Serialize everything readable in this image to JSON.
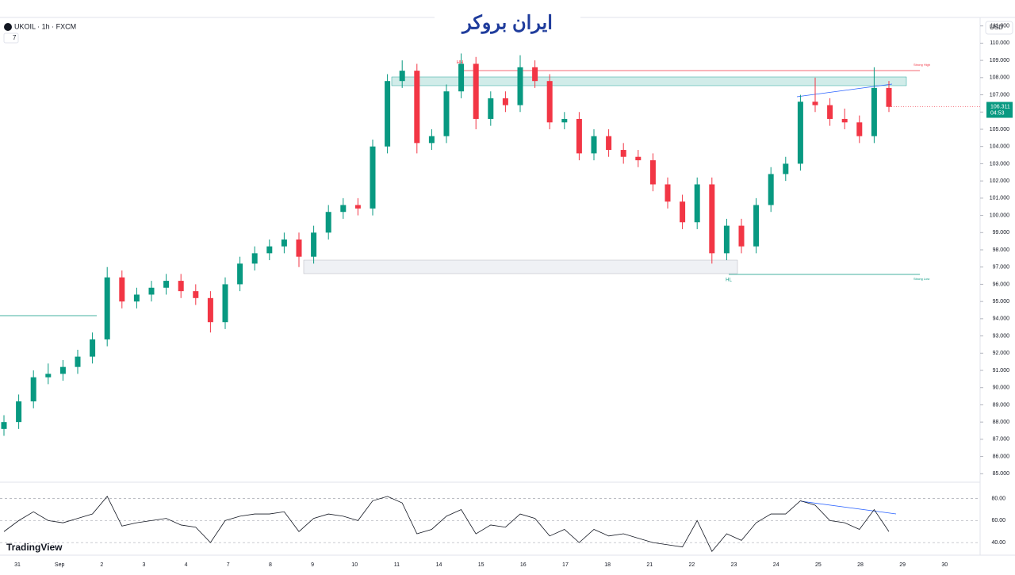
{
  "chart_data": {
    "type": "candlestick",
    "symbol": "UKOIL · 1h · FXCM",
    "indicator_count": "7",
    "currency": "USD",
    "brand": "ایران بروکر",
    "watermark": "TradingView",
    "x_labels": [
      "31",
      "Sep",
      "2",
      "3",
      "4",
      "7",
      "8",
      "9",
      "10",
      "11",
      "14",
      "15",
      "16",
      "17",
      "18",
      "21",
      "22",
      "23",
      "24",
      "25",
      "28",
      "29",
      "30"
    ],
    "open": [
      87.6,
      88.0,
      89.2,
      90.6,
      90.8,
      91.2,
      91.8,
      92.8,
      96.4,
      95.0,
      95.4,
      95.8,
      96.2,
      95.6,
      95.2,
      93.8,
      96.0,
      97.2,
      97.8,
      98.2,
      98.6,
      97.6,
      99.0,
      100.2,
      100.6,
      100.4,
      104.0,
      107.8,
      108.4,
      104.2,
      104.6,
      107.2,
      108.8,
      105.6,
      106.8,
      106.4,
      108.6,
      107.8,
      105.4,
      105.6,
      103.6,
      104.6,
      103.8,
      103.4,
      103.2,
      101.8,
      100.8,
      99.6,
      101.8,
      97.8,
      99.4,
      98.2,
      100.6,
      102.4,
      103.0,
      106.6,
      106.4,
      105.6,
      105.4,
      104.6,
      107.4
    ],
    "high": [
      88.4,
      89.6,
      91.0,
      91.4,
      91.6,
      92.2,
      93.2,
      97.0,
      96.8,
      95.8,
      96.2,
      96.6,
      96.6,
      96.0,
      95.6,
      96.4,
      97.6,
      98.2,
      98.6,
      99.0,
      99.0,
      99.4,
      100.6,
      101.0,
      101.0,
      104.4,
      108.2,
      109.0,
      108.8,
      105.0,
      107.6,
      109.4,
      109.2,
      107.2,
      107.2,
      109.3,
      109.0,
      108.2,
      106.0,
      106.0,
      105.0,
      105.0,
      104.2,
      103.8,
      103.6,
      102.2,
      101.2,
      102.2,
      102.2,
      99.8,
      99.8,
      101.0,
      102.8,
      103.4,
      107.0,
      108.0,
      106.8,
      106.2,
      105.8,
      108.6,
      107.8
    ],
    "low": [
      87.2,
      87.6,
      88.8,
      90.2,
      90.4,
      90.8,
      91.4,
      92.4,
      94.6,
      94.6,
      95.0,
      95.4,
      95.2,
      94.8,
      93.2,
      93.4,
      95.6,
      96.8,
      97.4,
      97.8,
      97.0,
      97.2,
      98.6,
      99.8,
      100.0,
      100.0,
      103.6,
      107.4,
      103.6,
      103.8,
      104.2,
      106.8,
      105.0,
      105.2,
      106.0,
      106.0,
      107.4,
      105.0,
      105.0,
      103.2,
      103.2,
      103.4,
      103.0,
      102.8,
      101.4,
      100.4,
      99.2,
      99.2,
      97.2,
      97.4,
      97.8,
      97.8,
      100.2,
      102.0,
      102.6,
      106.0,
      105.2,
      105.0,
      104.2,
      104.2,
      106.0
    ],
    "close": [
      88.0,
      89.2,
      90.6,
      90.8,
      91.2,
      91.8,
      92.8,
      96.4,
      95.0,
      95.4,
      95.8,
      96.2,
      95.6,
      95.2,
      93.8,
      96.0,
      97.2,
      97.8,
      98.2,
      98.6,
      97.6,
      99.0,
      100.2,
      100.6,
      100.4,
      104.0,
      107.8,
      108.4,
      104.2,
      104.6,
      107.2,
      108.8,
      105.6,
      106.8,
      106.4,
      108.6,
      107.8,
      105.4,
      105.6,
      103.6,
      104.6,
      103.8,
      103.4,
      103.2,
      101.8,
      100.8,
      99.6,
      101.8,
      97.8,
      99.4,
      98.2,
      100.6,
      102.4,
      103.0,
      106.6,
      106.4,
      105.6,
      105.4,
      104.6,
      107.4,
      106.3
    ],
    "up_color": "#089981",
    "down_color": "#f23645",
    "last_price": {
      "value": 106.311,
      "label": "106.311"
    },
    "countdown": "04:53",
    "ylim": [
      84.6,
      111.4
    ],
    "yticks": [
      {
        "value": 85,
        "label": "85.000"
      },
      {
        "value": 86,
        "label": "86.000"
      },
      {
        "value": 87,
        "label": "87.000"
      },
      {
        "value": 88,
        "label": "88.000"
      },
      {
        "value": 89,
        "label": "89.000"
      },
      {
        "value": 90,
        "label": "90.000"
      },
      {
        "value": 91,
        "label": "91.000"
      },
      {
        "value": 92,
        "label": "92.000"
      },
      {
        "value": 93,
        "label": "93.000"
      },
      {
        "value": 94,
        "label": "94.000"
      },
      {
        "value": 95,
        "label": "95.000"
      },
      {
        "value": 96,
        "label": "96.000"
      },
      {
        "value": 97,
        "label": "97.000"
      },
      {
        "value": 98,
        "label": "98.000"
      },
      {
        "value": 99,
        "label": "99.000"
      },
      {
        "value": 100,
        "label": "100.000"
      },
      {
        "value": 101,
        "label": "101.000"
      },
      {
        "value": 102,
        "label": "102.000"
      },
      {
        "value": 103,
        "label": "103.000"
      },
      {
        "value": 104,
        "label": "104.000"
      },
      {
        "value": 105,
        "label": "105.000"
      },
      {
        "value": 106,
        "label": "106.000"
      },
      {
        "value": 107,
        "label": "107.000"
      },
      {
        "value": 108,
        "label": "108.000"
      },
      {
        "value": 109,
        "label": "109.000"
      },
      {
        "value": 110,
        "label": "110.000"
      },
      {
        "value": 111,
        "label": "111.000"
      }
    ],
    "annotations": {
      "hh": "HH",
      "strong_high": "Strong High",
      "hl": "HL",
      "strong_low": "Strong Low"
    },
    "rsi": {
      "values": [
        50,
        60,
        68,
        60,
        58,
        62,
        66,
        82,
        55,
        58,
        60,
        62,
        56,
        54,
        40,
        60,
        64,
        66,
        66,
        68,
        50,
        62,
        66,
        64,
        60,
        78,
        82,
        76,
        48,
        52,
        64,
        70,
        48,
        56,
        54,
        66,
        62,
        46,
        52,
        40,
        52,
        46,
        48,
        44,
        40,
        38,
        36,
        60,
        32,
        48,
        42,
        58,
        66,
        66,
        78,
        74,
        60,
        58,
        52,
        70,
        50
      ],
      "color": "#131722",
      "ylim": [
        30,
        92
      ],
      "yticks": [
        {
          "value": 40,
          "label": "40.00"
        },
        {
          "value": 60,
          "label": "60.00"
        },
        {
          "value": 80,
          "label": "80.00"
        }
      ]
    }
  }
}
